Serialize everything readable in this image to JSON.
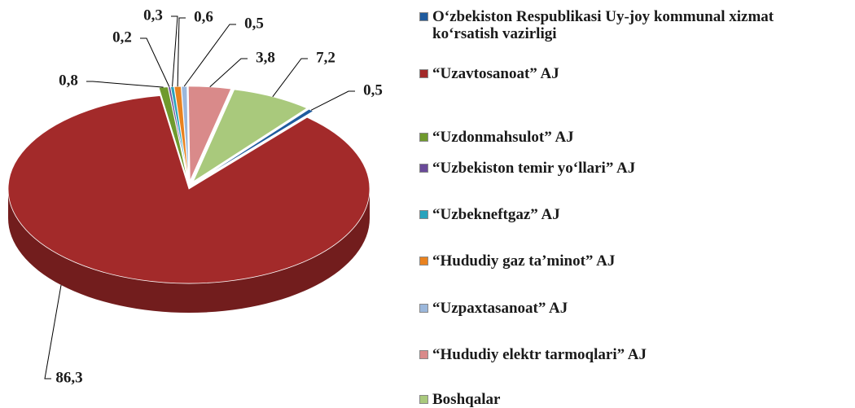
{
  "chart_data": {
    "type": "pie",
    "categories": [
      "O‘zbekiston  Respublikasi Uy-joy kommunal xizmat ko‘rsatish vazirligi",
      "“Uzavtosanoat” AJ",
      "“Uzdonmahsulot” AJ",
      "“Uzbekiston temir yo‘llari” AJ",
      "“Uzbekneftgaz” AJ",
      "“Hududiy gaz ta’minot” AJ",
      "“Uzpaxtasanoat” AJ",
      "“Hududiy elektr tarmoqlari” AJ",
      "Boshqalar"
    ],
    "values": [
      0.5,
      86.3,
      0.8,
      0.2,
      0.3,
      0.6,
      0.5,
      3.8,
      7.2
    ],
    "value_labels": [
      "0,5",
      "86,3",
      "0,8",
      "0,2",
      "0,3",
      "0,6",
      "0,5",
      "3,8",
      "7,2"
    ],
    "colors": [
      "#1f5b9e",
      "#a32a2a",
      "#6f9a2d",
      "#6a4a99",
      "#2aa3bd",
      "#e9821f",
      "#9bb7db",
      "#d98a8a",
      "#a9c97c"
    ],
    "legend": "right"
  }
}
